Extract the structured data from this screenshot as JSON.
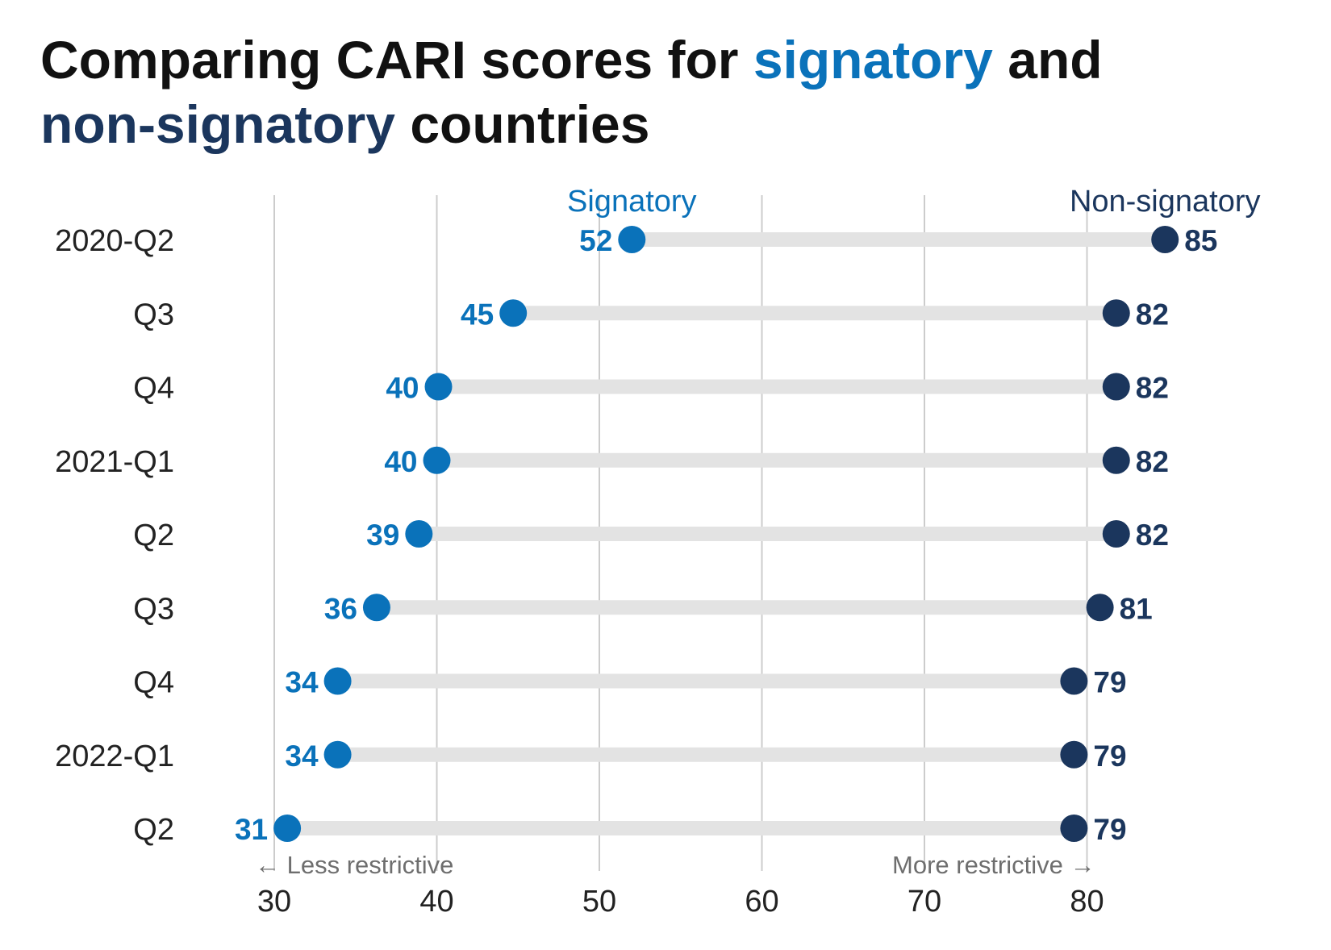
{
  "title": {
    "part1": "Comparing CARI scores for ",
    "highlight1": "signatory",
    "part2": " and",
    "highlight2": "non-signatory",
    "part3": " countries"
  },
  "colors": {
    "signatory": "#0a72ba",
    "non_signatory": "#1b365d",
    "connector": "#e3e3e3",
    "grid": "#cccccc",
    "axis_text": "#222222",
    "note_text": "#6e6e6e"
  },
  "chart_data": {
    "type": "dumbbell",
    "categories": [
      "2020-Q2",
      "Q3",
      "Q4",
      "2021-Q1",
      "Q2",
      "Q3",
      "Q4",
      "2022-Q1",
      "Q2"
    ],
    "series": [
      {
        "name": "Signatory",
        "values": [
          52,
          45,
          40,
          40,
          39,
          36,
          34,
          34,
          31
        ],
        "precise": [
          52,
          44.7,
          40.1,
          40,
          38.9,
          36.3,
          33.9,
          33.9,
          30.8
        ]
      },
      {
        "name": "Non-signatory",
        "values": [
          85,
          82,
          82,
          82,
          82,
          81,
          79,
          79,
          79
        ],
        "precise": [
          84.8,
          81.8,
          81.8,
          81.8,
          81.8,
          80.8,
          79.2,
          79.2,
          79.2
        ]
      }
    ],
    "xlim": [
      30,
      80
    ],
    "xticks": [
      30,
      40,
      50,
      60,
      70,
      80
    ],
    "grid": true,
    "annotations": {
      "left": "← Less restrictive",
      "right": "More restrictive →"
    }
  }
}
